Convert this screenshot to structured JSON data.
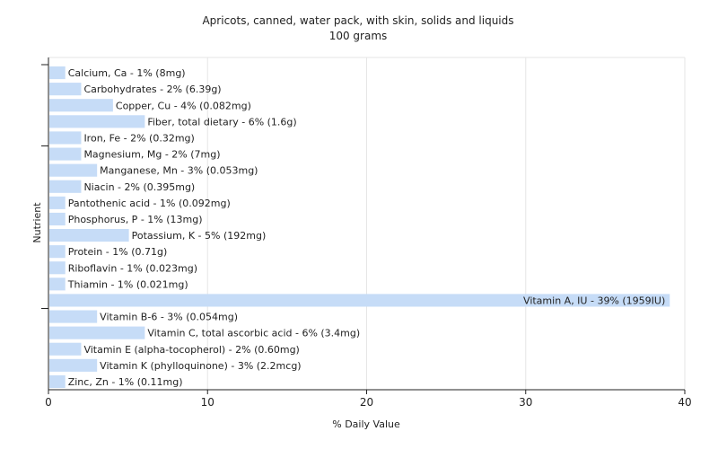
{
  "chart_data": {
    "type": "bar",
    "orientation": "horizontal",
    "title": "Apricots, canned, water pack, with skin, solids and liquids",
    "subtitle": "100 grams",
    "xlabel": "% Daily Value",
    "ylabel": "Nutrient",
    "xlim": [
      0,
      40
    ],
    "xticks": [
      "0",
      "10",
      "20",
      "30",
      "40"
    ],
    "grid": true,
    "bar_color": "#c6dcf7",
    "categories": [
      "Calcium, Ca",
      "Carbohydrates",
      "Copper, Cu",
      "Fiber, total dietary",
      "Iron, Fe",
      "Magnesium, Mg",
      "Manganese, Mn",
      "Niacin",
      "Pantothenic acid",
      "Phosphorus, P",
      "Potassium, K",
      "Protein",
      "Riboflavin",
      "Thiamin",
      "Vitamin A, IU",
      "Vitamin B-6",
      "Vitamin C, total ascorbic acid",
      "Vitamin E (alpha-tocopherol)",
      "Vitamin K (phylloquinone)",
      "Zinc, Zn"
    ],
    "values": [
      1,
      2,
      4,
      6,
      2,
      2,
      3,
      2,
      1,
      1,
      5,
      1,
      1,
      1,
      39,
      3,
      6,
      2,
      3,
      1
    ],
    "labels": [
      "Calcium, Ca - 1% (8mg)",
      "Carbohydrates - 2% (6.39g)",
      "Copper, Cu - 4% (0.082mg)",
      "Fiber, total dietary - 6% (1.6g)",
      "Iron, Fe - 2% (0.32mg)",
      "Magnesium, Mg - 2% (7mg)",
      "Manganese, Mn - 3% (0.053mg)",
      "Niacin - 2% (0.395mg)",
      "Pantothenic acid - 1% (0.092mg)",
      "Phosphorus, P - 1% (13mg)",
      "Potassium, K - 5% (192mg)",
      "Protein - 1% (0.71g)",
      "Riboflavin - 1% (0.023mg)",
      "Thiamin - 1% (0.021mg)",
      "Vitamin A, IU - 39% (1959IU)",
      "Vitamin B-6 - 3% (0.054mg)",
      "Vitamin C, total ascorbic acid - 6% (3.4mg)",
      "Vitamin E (alpha-tocopherol) - 2% (0.60mg)",
      "Vitamin K (phylloquinone) - 3% (2.2mcg)",
      "Zinc, Zn - 1% (0.11mg)"
    ]
  }
}
